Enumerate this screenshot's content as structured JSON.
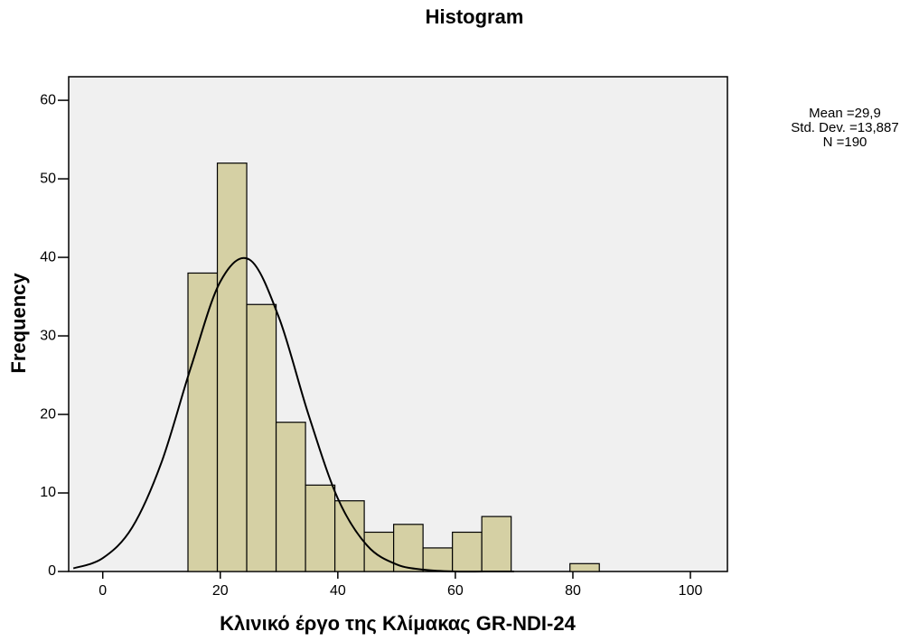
{
  "chart_data": {
    "type": "histogram",
    "title": "Histogram",
    "xlabel": "Κλινικό έργο της Κλίμακας GR-NDI-24",
    "ylabel": "Frequency",
    "bins": [
      14.5,
      19.5,
      24.5,
      29.5,
      34.5,
      39.5,
      44.5,
      49.5,
      54.5,
      59.5,
      64.5,
      69.5,
      74.5,
      79.5,
      84.5
    ],
    "counts": [
      38,
      52,
      34,
      19,
      11,
      9,
      5,
      6,
      3,
      5,
      7,
      0,
      0,
      1
    ],
    "color": "#d5d0a4",
    "curve": {
      "x": [
        -5,
        0,
        5,
        10,
        15,
        20,
        25,
        30,
        35,
        40,
        45,
        50,
        55,
        60,
        65,
        70
      ],
      "y": [
        0.4,
        1.7,
        5.6,
        13.9,
        26.0,
        36.9,
        39.7,
        32.3,
        20.0,
        9.3,
        3.3,
        0.9,
        0.2,
        0,
        0,
        0
      ]
    },
    "xlim": [
      -5.8,
      106.3
    ],
    "ylim": [
      0,
      63
    ],
    "xticks": [
      0,
      20,
      40,
      60,
      80,
      100
    ],
    "yticks": [
      0,
      10,
      20,
      30,
      40,
      50,
      60
    ],
    "stats": [
      "Mean =29,9",
      "Std. Dev. =13,887",
      "N =190"
    ]
  }
}
